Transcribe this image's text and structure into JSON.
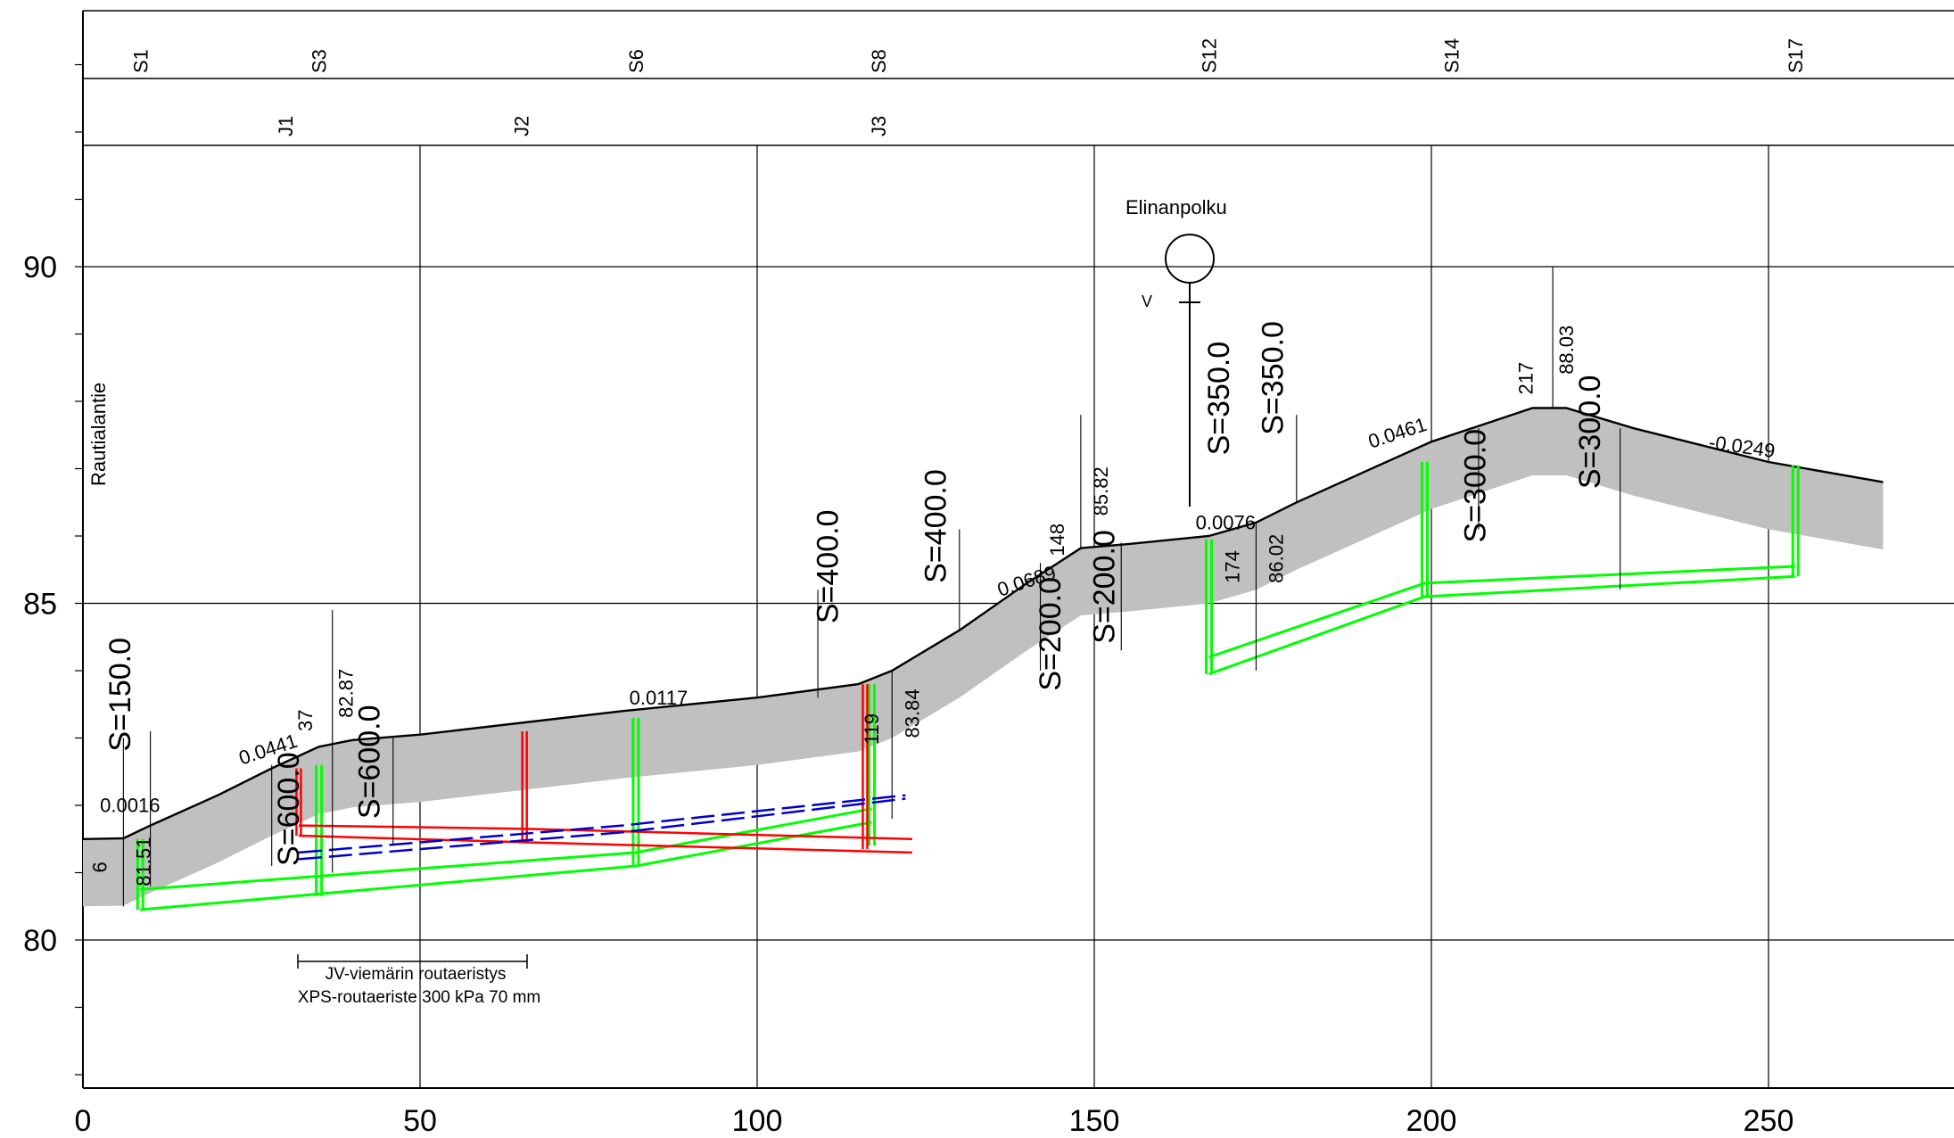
{
  "title": "",
  "xlim": [
    0,
    280
  ],
  "ylim": [
    77.7,
    94
  ],
  "x_ticks": [
    "0",
    "50",
    "100",
    "150",
    "200",
    "250"
  ],
  "y_ticks": [
    "80",
    "85",
    "90"
  ],
  "y_tick_values": [
    80,
    85,
    90
  ],
  "stations": [
    "S1",
    "S3",
    "S6",
    "S8",
    "S12",
    "S14",
    "S17"
  ],
  "station_x": [
    8.5,
    35,
    82,
    118,
    167,
    203,
    254
  ],
  "junctions": [
    "J1",
    "J2",
    "J3"
  ],
  "junction_x": [
    30,
    65,
    118
  ],
  "side_road_label": "Rautialantie",
  "crossing_label": "Elinanpolku",
  "crossing_v_label": "V",
  "insulation_labels": [
    "JV-viemärin routaeristys",
    "XPS-routaeriste 300 kPa 70 mm"
  ],
  "colors": {
    "grid": "#000000",
    "ground_band": "#c0c0c0",
    "storm_pipe": "#00ff00",
    "sewer_pipe": "#ff0000",
    "water_pipe": "#0000cc"
  },
  "chart_data": {
    "type": "line",
    "xlabel": "",
    "ylabel": "",
    "xlim": [
      0,
      280
    ],
    "ylim": [
      77.7,
      94
    ],
    "series": [
      {
        "name": "",
        "x": [
          0,
          6,
          10,
          20,
          28,
          35,
          40,
          50,
          80,
          100,
          115,
          120,
          130,
          140,
          148,
          155,
          167,
          174,
          180,
          200,
          215,
          220,
          230,
          250,
          267
        ],
        "y": [
          81.5,
          81.51,
          81.7,
          82.15,
          82.55,
          82.87,
          82.97,
          83.05,
          83.4,
          83.6,
          83.8,
          84.0,
          84.6,
          85.3,
          85.82,
          85.88,
          86.0,
          86.2,
          86.5,
          87.4,
          87.9,
          87.9,
          87.6,
          87.1,
          86.8
        ]
      }
    ],
    "profile_labels": [
      {
        "text": "6",
        "x": 3.5,
        "y": 81.0
      },
      {
        "text": "0.0016",
        "x": 6.5,
        "y": 81.9
      },
      {
        "text": "81.51",
        "x": 10,
        "y": 80.8
      },
      {
        "text": "S=150.0",
        "x": 7,
        "y": 82.8
      },
      {
        "text": "0.0441",
        "x": 27.5,
        "y": 82.6
      },
      {
        "text": "37",
        "x": 34,
        "y": 83.1
      },
      {
        "text": "82.87",
        "x": 40,
        "y": 83.3
      },
      {
        "text": "S=600.0",
        "x": 32,
        "y": 81.1
      },
      {
        "text": "S=600.0",
        "x": 44,
        "y": 81.8
      },
      {
        "text": "0.0117",
        "x": 85,
        "y": 83.5
      },
      {
        "text": "S=400.0",
        "x": 112,
        "y": 84.7
      },
      {
        "text": "119",
        "x": 118,
        "y": 82.9
      },
      {
        "text": "83.84",
        "x": 124,
        "y": 83.0
      },
      {
        "text": "S=400.0",
        "x": 128,
        "y": 85.3
      },
      {
        "text": "0.0689",
        "x": 140,
        "y": 85.1
      },
      {
        "text": "148",
        "x": 145.5,
        "y": 85.7
      },
      {
        "text": "85.82",
        "x": 152,
        "y": 86.3
      },
      {
        "text": "S=200.0",
        "x": 145,
        "y": 83.7
      },
      {
        "text": "S=200.0",
        "x": 153,
        "y": 84.4
      },
      {
        "text": "0.0076",
        "x": 169,
        "y": 86.1
      },
      {
        "text": "174",
        "x": 171.5,
        "y": 85.3
      },
      {
        "text": "86.02",
        "x": 178,
        "y": 85.3
      },
      {
        "text": "S=350.0",
        "x": 170,
        "y": 87.2
      },
      {
        "text": "S=350.0",
        "x": 178,
        "y": 87.5
      },
      {
        "text": "0.0461",
        "x": 195,
        "y": 87.3
      },
      {
        "text": "S=300.0",
        "x": 208,
        "y": 85.9
      },
      {
        "text": "217",
        "x": 215,
        "y": 88.1
      },
      {
        "text": "88.03",
        "x": 221,
        "y": 88.4
      },
      {
        "text": "S=300.0",
        "x": 225,
        "y": 86.7
      },
      {
        "text": "-0.0249",
        "x": 245,
        "y": 87.3
      }
    ],
    "storm_pipe": {
      "line_a": {
        "x": [
          8.5,
          82,
          117
        ],
        "y": [
          80.75,
          81.3,
          81.95
        ]
      },
      "line_b": {
        "x": [
          8.5,
          82,
          117
        ],
        "y": [
          80.45,
          81.1,
          81.75
        ]
      },
      "line_c": {
        "x": [
          167,
          199,
          254
        ],
        "y": [
          84.2,
          85.3,
          85.55
        ]
      },
      "line_d": {
        "x": [
          167,
          199,
          254
        ],
        "y": [
          83.95,
          85.1,
          85.4
        ]
      },
      "risers": [
        {
          "x": 8.5,
          "y0": 80.45,
          "y1": 81.5
        },
        {
          "x": 35,
          "y0": 80.65,
          "y1": 82.6
        },
        {
          "x": 82,
          "y0": 81.1,
          "y1": 83.3
        },
        {
          "x": 117,
          "y0": 81.4,
          "y1": 83.8
        },
        {
          "x": 167,
          "y0": 83.95,
          "y1": 85.95
        },
        {
          "x": 199,
          "y0": 85.1,
          "y1": 87.1
        },
        {
          "x": 254,
          "y0": 85.4,
          "y1": 87.05
        }
      ]
    },
    "sewer_pipe": {
      "line_a": {
        "x": [
          32,
          66,
          123
        ],
        "y": [
          81.7,
          81.65,
          81.5
        ]
      },
      "line_b": {
        "x": [
          32,
          66,
          123
        ],
        "y": [
          81.55,
          81.45,
          81.3
        ]
      },
      "risers": [
        {
          "x": 32,
          "y0": 81.55,
          "y1": 82.55
        },
        {
          "x": 65.5,
          "y0": 81.45,
          "y1": 83.1
        },
        {
          "x": 116,
          "y0": 81.35,
          "y1": 83.8
        }
      ]
    },
    "water_pipe": {
      "line_a": {
        "x": [
          32,
          80,
          122
        ],
        "y": [
          81.2,
          81.6,
          82.1
        ]
      },
      "line_b": {
        "x": [
          32,
          80,
          122
        ],
        "y": [
          81.3,
          81.7,
          82.15
        ]
      }
    }
  }
}
